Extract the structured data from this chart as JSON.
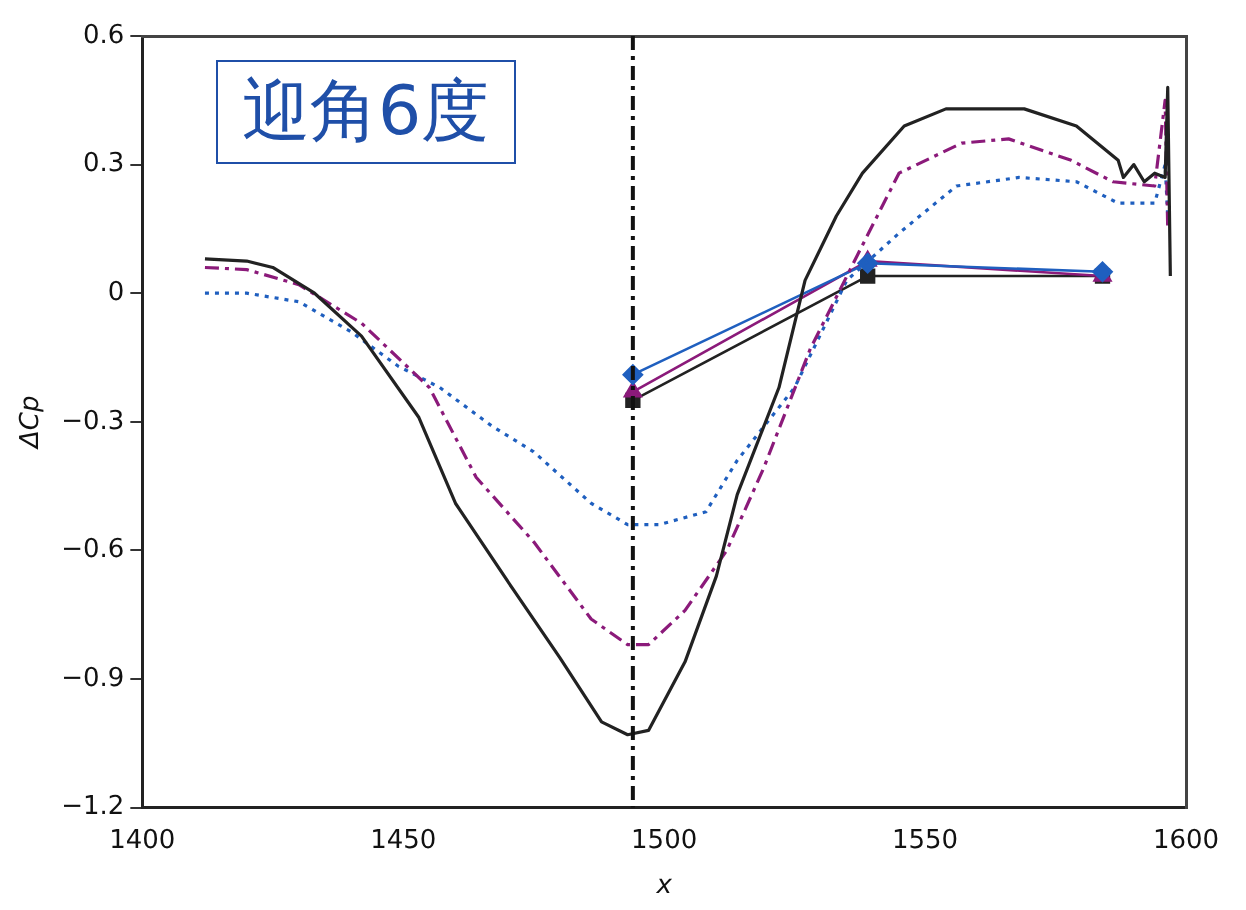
{
  "chart_data": {
    "type": "line",
    "xlabel": "x",
    "ylabel": "ΔCp",
    "annotations": [
      "迎角6度"
    ],
    "xlim": [
      1400,
      1600
    ],
    "xticks": [
      1400,
      1450,
      1500,
      1550,
      1600
    ],
    "ylim": [
      -1.2,
      0.6
    ],
    "yticks": [
      {
        "value": -1.2,
        "label": "−1.2"
      },
      {
        "value": -0.9,
        "label": "−0.9"
      },
      {
        "value": -0.6,
        "label": "−0.6"
      },
      {
        "value": -0.3,
        "label": "−0.3"
      },
      0,
      0.3,
      0.6
    ],
    "grid": false,
    "legend": false,
    "ref_lines": [
      {
        "axis": "x",
        "value": 1494,
        "color": "#111111",
        "line_style": "dashed"
      }
    ],
    "series": [
      {
        "color": "#222222",
        "marker": "none",
        "line_style": "solid",
        "x": [
          1412,
          1420,
          1425,
          1433,
          1442,
          1453,
          1460,
          1471,
          1480,
          1488,
          1493,
          1497,
          1504,
          1510,
          1514,
          1522,
          1527,
          1533,
          1538,
          1546,
          1554,
          1569,
          1579,
          1587,
          1588,
          1590,
          1592,
          1594,
          1596,
          1596.5,
          1597
        ],
        "values": [
          0.08,
          0.075,
          0.06,
          0.0,
          -0.1,
          -0.29,
          -0.49,
          -0.69,
          -0.85,
          -1.0,
          -1.03,
          -1.02,
          -0.86,
          -0.66,
          -0.47,
          -0.22,
          0.03,
          0.18,
          0.28,
          0.39,
          0.43,
          0.43,
          0.39,
          0.31,
          0.27,
          0.3,
          0.26,
          0.28,
          0.27,
          0.48,
          0.04
        ]
      },
      {
        "color": "#8b1a7a",
        "marker": "none",
        "line_style": "dashed",
        "x": [
          1412,
          1420,
          1430,
          1442,
          1455,
          1464,
          1475,
          1486,
          1493,
          1497,
          1504,
          1512,
          1519,
          1528,
          1537.5,
          1545,
          1557,
          1566,
          1578,
          1586,
          1594,
          1596,
          1596.5
        ],
        "values": [
          0.06,
          0.055,
          0.02,
          -0.07,
          -0.22,
          -0.43,
          -0.58,
          -0.76,
          -0.82,
          -0.82,
          -0.74,
          -0.6,
          -0.41,
          -0.13,
          0.1,
          0.28,
          0.35,
          0.36,
          0.31,
          0.26,
          0.25,
          0.45,
          0.15
        ]
      },
      {
        "color": "#1f5fbf",
        "marker": "none",
        "line_style": "dotted",
        "x": [
          1412,
          1420,
          1430,
          1440,
          1449,
          1457,
          1467,
          1475,
          1486,
          1493,
          1499,
          1508,
          1514,
          1525,
          1535,
          1545,
          1556,
          1568,
          1579,
          1587,
          1594,
          1596,
          1596.5
        ],
        "values": [
          0.0,
          0.0,
          -0.02,
          -0.09,
          -0.17,
          -0.22,
          -0.31,
          -0.37,
          -0.49,
          -0.54,
          -0.54,
          -0.51,
          -0.39,
          -0.22,
          0.03,
          0.14,
          0.25,
          0.27,
          0.26,
          0.21,
          0.21,
          0.3,
          0.18
        ]
      },
      {
        "color": "#1f5fbf",
        "marker": "diamond",
        "line_style": "solid",
        "x": [
          1494,
          1539,
          1584
        ],
        "values": [
          -0.19,
          0.07,
          0.05
        ]
      },
      {
        "color": "#8b1a7a",
        "marker": "triangle",
        "line_style": "solid",
        "x": [
          1494,
          1539,
          1584
        ],
        "values": [
          -0.23,
          0.075,
          0.04
        ]
      },
      {
        "color": "#222222",
        "marker": "square",
        "line_style": "solid",
        "x": [
          1494,
          1539,
          1584
        ],
        "values": [
          -0.25,
          0.04,
          0.04
        ]
      }
    ]
  }
}
